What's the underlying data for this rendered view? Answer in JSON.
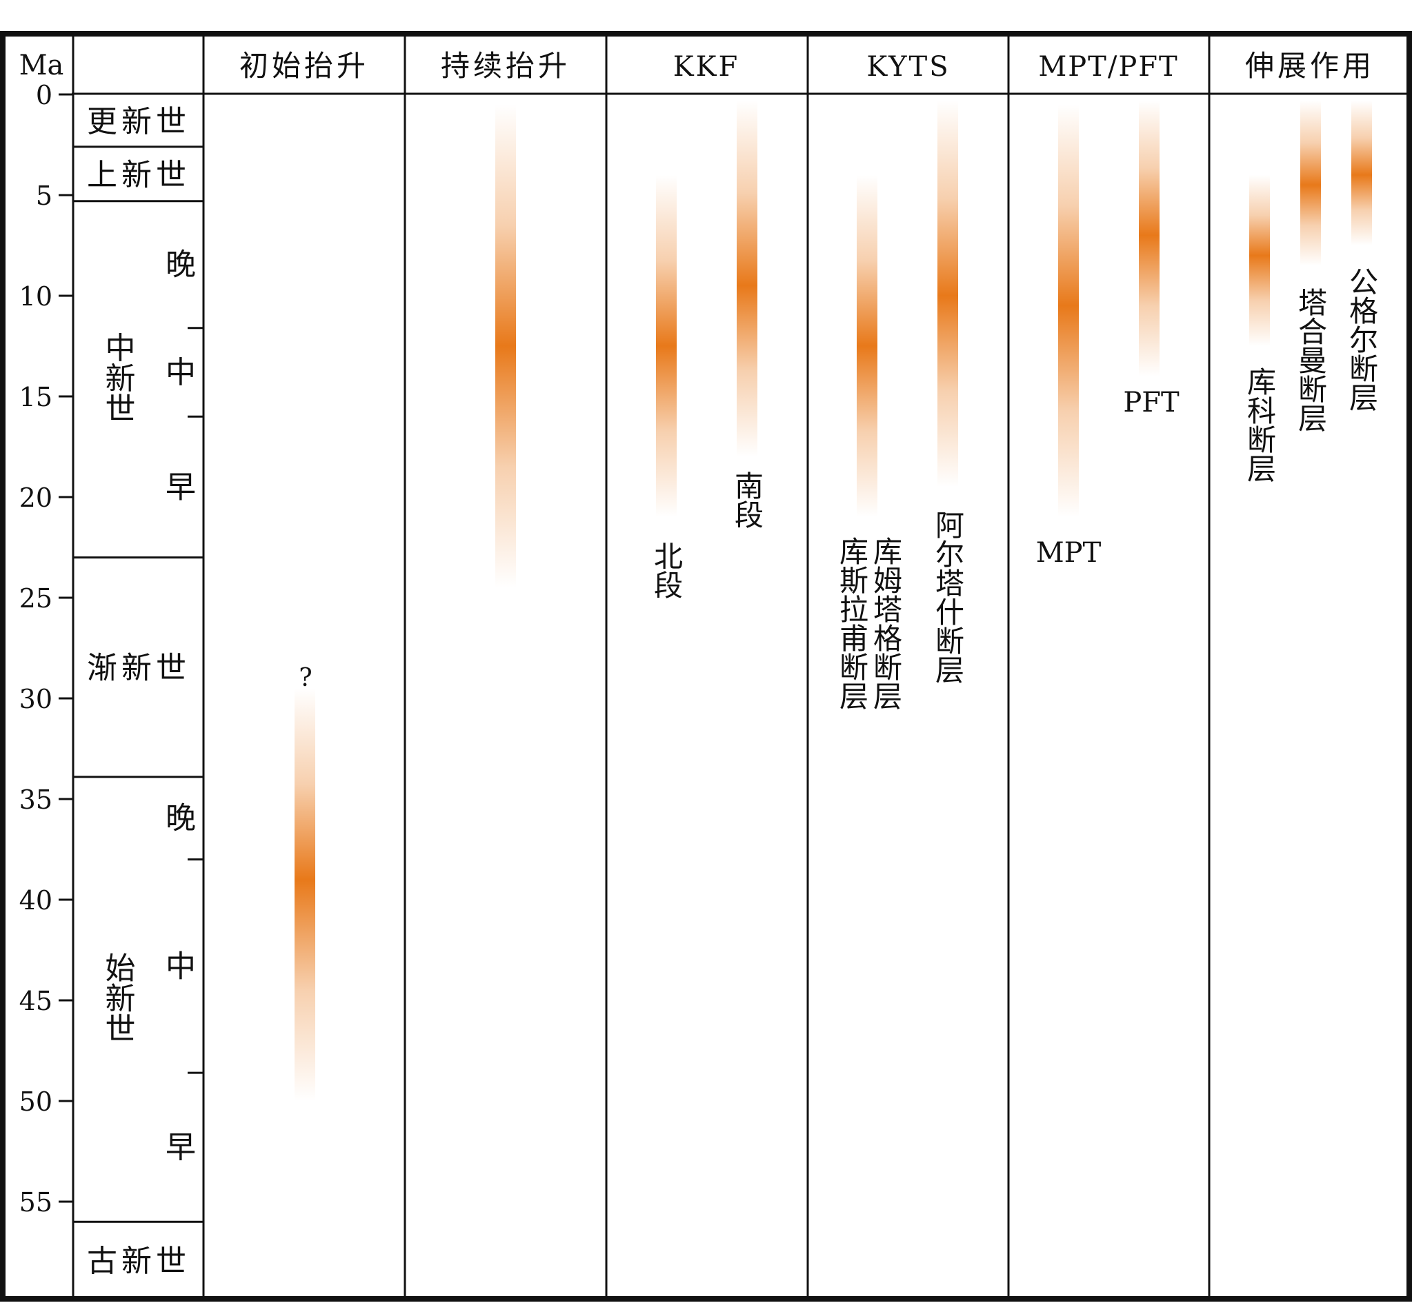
{
  "axis": {
    "unit": "Ma",
    "ticks": [
      0,
      5,
      10,
      15,
      20,
      25,
      30,
      35,
      40,
      45,
      50,
      55
    ]
  },
  "columns": [
    {
      "id": "initial-uplift",
      "header": "初始抬升"
    },
    {
      "id": "sustained-uplift",
      "header": "持续抬升"
    },
    {
      "id": "kkf",
      "header": "KKF"
    },
    {
      "id": "kyts",
      "header": "KYTS"
    },
    {
      "id": "mpt-pft",
      "header": "MPT/PFT"
    },
    {
      "id": "extension",
      "header": "伸展作用"
    }
  ],
  "epochs": [
    {
      "name": "更新世",
      "start": 0,
      "end": 2.6
    },
    {
      "name": "上新世",
      "start": 2.6,
      "end": 5.3
    },
    {
      "name": "中新世",
      "start": 5.3,
      "end": 23.0,
      "subdivisions": [
        {
          "name": "晚",
          "start": 5.3,
          "end": 11.6
        },
        {
          "name": "中",
          "start": 11.6,
          "end": 16.0
        },
        {
          "name": "早",
          "start": 16.0,
          "end": 23.0
        }
      ]
    },
    {
      "name": "渐新世",
      "start": 23.0,
      "end": 33.9
    },
    {
      "name": "始新世",
      "start": 33.9,
      "end": 56.0,
      "subdivisions": [
        {
          "name": "晚",
          "start": 33.9,
          "end": 38.0
        },
        {
          "name": "中",
          "start": 38.0,
          "end": 48.6
        },
        {
          "name": "早",
          "start": 48.6,
          "end": 56.0
        }
      ]
    },
    {
      "name": "古新世",
      "start": 56.0,
      "end": 60.0
    }
  ],
  "events": [
    {
      "id": "initial-uplift-bar",
      "column": "initial-uplift",
      "start": 29.5,
      "end": 50.0,
      "peak": 39.0,
      "label": "",
      "query": "?"
    },
    {
      "id": "sustained-uplift-bar",
      "column": "sustained-uplift",
      "start": 0.5,
      "end": 24.5,
      "peak": 12.5,
      "label": ""
    },
    {
      "id": "kkf-north",
      "column": "kkf",
      "start": 4.0,
      "end": 21.0,
      "peak": 12.5,
      "label": "北段"
    },
    {
      "id": "kkf-south",
      "column": "kkf",
      "start": 0.3,
      "end": 18.0,
      "peak": 9.5,
      "label": "南段"
    },
    {
      "id": "kyts-kosila",
      "column": "kyts",
      "start": 4.0,
      "end": 21.0,
      "peak": 12.5,
      "label": "库斯拉甫断层"
    },
    {
      "id": "kyts-kumtag",
      "column": "kyts",
      "start": 4.0,
      "end": 21.0,
      "peak": 12.5,
      "label": "库姆塔格断层"
    },
    {
      "id": "kyts-altash",
      "column": "kyts",
      "start": 0.3,
      "end": 19.5,
      "peak": 10.0,
      "label": "阿尔塔什断层"
    },
    {
      "id": "mpt",
      "column": "mpt-pft",
      "start": 0.5,
      "end": 21.0,
      "peak": 10.5,
      "label": "MPT"
    },
    {
      "id": "pft",
      "column": "mpt-pft",
      "start": 0.3,
      "end": 14.0,
      "peak": 7.0,
      "label": "PFT"
    },
    {
      "id": "kongur-kuke",
      "column": "extension",
      "start": 4.0,
      "end": 12.5,
      "peak": 8.0,
      "label": "库科断层"
    },
    {
      "id": "kongur-tahman",
      "column": "extension",
      "start": 0.3,
      "end": 8.5,
      "peak": 4.5,
      "label": "塔合曼断层"
    },
    {
      "id": "kongur-gongur",
      "column": "extension",
      "start": 0.3,
      "end": 7.5,
      "peak": 4.0,
      "label": "公格尔断层"
    }
  ],
  "colors": {
    "bar": "#e8791a",
    "line": "#111111"
  }
}
